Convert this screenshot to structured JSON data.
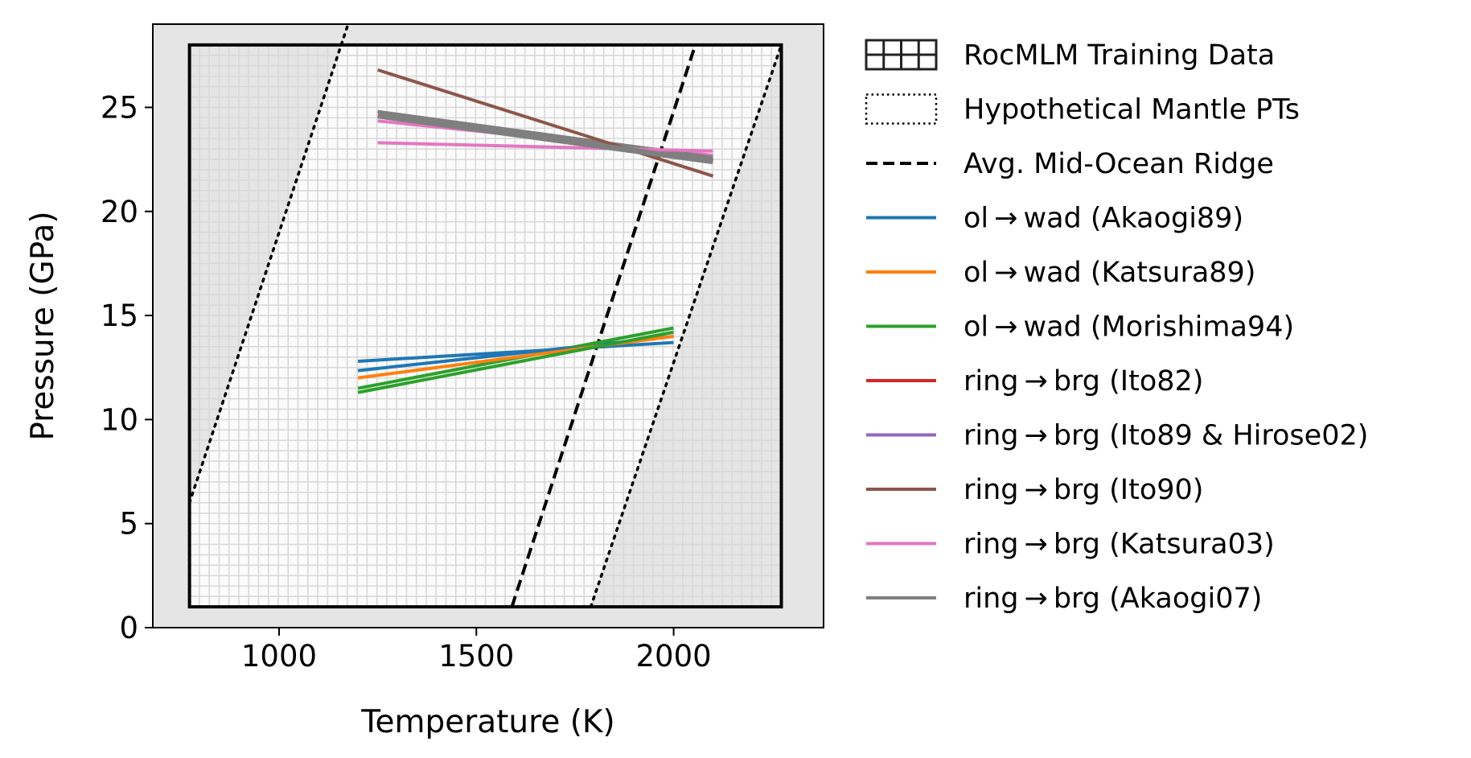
{
  "chart_data": {
    "type": "line",
    "title": "",
    "xlabel": "Temperature (K)",
    "ylabel": "Pressure (GPa)",
    "xlim": [
      680,
      2380
    ],
    "ylim": [
      0,
      29
    ],
    "xticks": [
      1000,
      1500,
      2000
    ],
    "yticks": [
      0,
      5,
      10,
      15,
      20,
      25
    ],
    "legend_placement": "outside-right",
    "training_region": {
      "label": "RocMLM Training Data",
      "T_range": [
        773,
        2273
      ],
      "P_range": [
        1,
        28
      ],
      "grid_T_step": 25,
      "grid_P_step": 0.5
    },
    "mantle_bounds": {
      "label": "Hypothetical Mantle PTs",
      "lines": [
        {
          "T": [
            773,
            1175
          ],
          "P": [
            6,
            29
          ]
        },
        {
          "T": [
            1790,
            2273
          ],
          "P": [
            1,
            28
          ]
        }
      ]
    },
    "mid_ocean_ridge": {
      "label": "Avg. Mid-Ocean Ridge",
      "T": [
        1590,
        2055
      ],
      "P": [
        1,
        28
      ]
    },
    "series": [
      {
        "name": "ol → wad (Akaogi89)",
        "color": "#1f77b4",
        "width": 4,
        "T": [
          1200,
          2000
        ],
        "P": [
          12.8,
          13.7
        ]
      },
      {
        "name": "ol → wad (Katsura89)",
        "color": "#ff7f0e",
        "width": 4,
        "T": [
          1200,
          2000
        ],
        "P": [
          12.0,
          14.0
        ]
      },
      {
        "name": "ol → wad (Morishima94)",
        "color": "#2ca02c",
        "width": 4,
        "T": [
          1200,
          2000
        ],
        "P": [
          11.3,
          14.2
        ]
      },
      {
        "name": "ring → brg (Ito82)",
        "color": "#d62728",
        "width": 4,
        "T": [],
        "P": []
      },
      {
        "name": "ring → brg (Ito89 & Hirose02)",
        "color": "#9467bd",
        "width": 4,
        "T": [],
        "P": []
      },
      {
        "name": "ring → brg (Ito90)",
        "color": "#8c564b",
        "width": 4,
        "T": [
          1250,
          2100
        ],
        "P": [
          26.8,
          21.7
        ]
      },
      {
        "name": "ring → brg (Katsura03)",
        "color": "#e377c2",
        "width": 4,
        "T": [
          1250,
          2100
        ],
        "P": [
          23.3,
          22.9
        ]
      },
      {
        "name": "ring → brg (Akaogi07)",
        "color": "#7f7f7f",
        "width": 7,
        "T": [
          1250,
          2100
        ],
        "P": [
          24.6,
          22.4
        ]
      }
    ],
    "extra_segments": [
      {
        "color": "#1f77b4",
        "width": 4,
        "T": [
          1200,
          2000
        ],
        "P": [
          12.35,
          14.0
        ]
      },
      {
        "color": "#2ca02c",
        "width": 4,
        "T": [
          1200,
          2000
        ],
        "P": [
          11.5,
          14.4
        ]
      },
      {
        "color": "#e377c2",
        "width": 4,
        "T": [
          1250,
          2100
        ],
        "P": [
          24.35,
          22.7
        ]
      },
      {
        "color": "#7f7f7f",
        "width": 4,
        "T": [
          1250,
          2100
        ],
        "P": [
          24.8,
          22.6
        ]
      }
    ]
  }
}
